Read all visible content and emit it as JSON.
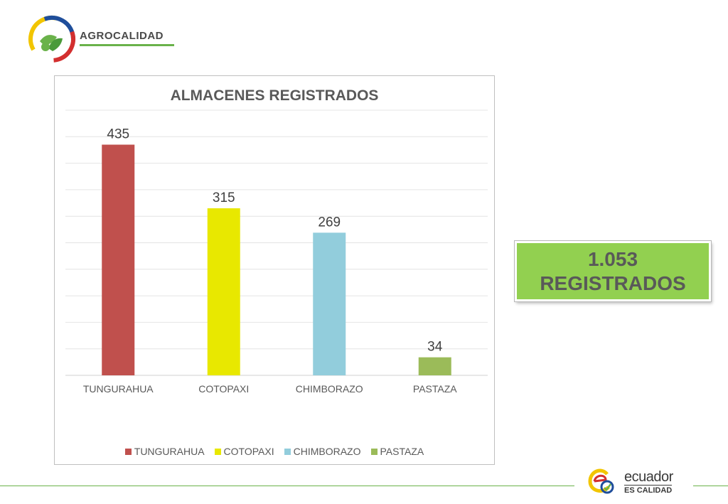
{
  "header": {
    "brand_name": "AGROCALIDAD"
  },
  "chart_data": {
    "type": "bar",
    "title": "ALMACENES REGISTRADOS",
    "categories": [
      "TUNGURAHUA",
      "COTOPAXI",
      "CHIMBORAZO",
      "PASTAZA"
    ],
    "values": [
      435,
      315,
      269,
      34
    ],
    "colors": [
      "#c0504d",
      "#e8e800",
      "#92cddc",
      "#9bbb59"
    ],
    "ylim": [
      0,
      500
    ],
    "grid": true,
    "legend": "bottom"
  },
  "total_box": {
    "value": "1.053",
    "label": "REGISTRADOS"
  },
  "footer": {
    "word1": "ecuador",
    "word2": "ES CALIDAD"
  }
}
